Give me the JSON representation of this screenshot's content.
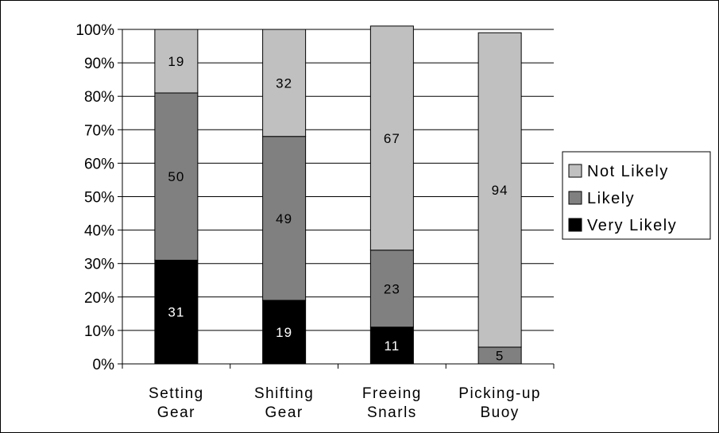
{
  "chart_data": {
    "type": "bar",
    "stacked": true,
    "categories": [
      [
        "Setting",
        "Gear"
      ],
      [
        "Shifting",
        "Gear"
      ],
      [
        "Freeing",
        "Snarls"
      ],
      [
        "Picking-up",
        "Buoy"
      ]
    ],
    "series": [
      {
        "name": "Very Likely",
        "values": [
          31,
          19,
          11,
          0
        ],
        "color": "#000000",
        "label_color": "#ffffff"
      },
      {
        "name": "Likely",
        "values": [
          50,
          49,
          23,
          5
        ],
        "color": "#808080",
        "label_color": "#000000"
      },
      {
        "name": "Not Likely",
        "values": [
          19,
          32,
          67,
          94
        ],
        "color": "#c0c0c0",
        "label_color": "#000000"
      }
    ],
    "ylim": [
      0,
      100
    ],
    "yticks": [
      "0%",
      "10%",
      "20%",
      "30%",
      "40%",
      "50%",
      "60%",
      "70%",
      "80%",
      "90%",
      "100%"
    ],
    "grid": true,
    "legend_position": "right",
    "legend_order": [
      "Not Likely",
      "Likely",
      "Very Likely"
    ],
    "title": "",
    "xlabel": "",
    "ylabel": ""
  }
}
